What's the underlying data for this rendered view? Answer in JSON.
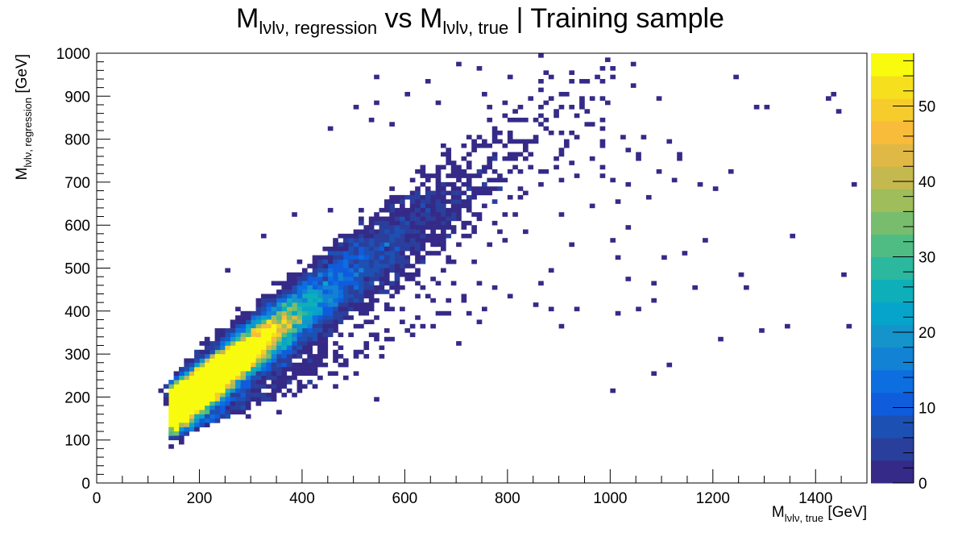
{
  "chart_data": {
    "type": "heatmap",
    "title": {
      "m1": "M",
      "sub1": "lνlν, regression",
      "vs": " vs ",
      "m2": "M",
      "sub2": "lνlν, true",
      "rest": " | Training sample"
    },
    "xlabel": {
      "main": "M",
      "sub": "lνlν, true",
      "unit": " [GeV]"
    },
    "ylabel": {
      "main": "M",
      "sub": "lνlν, regression",
      "unit": " [GeV]"
    },
    "xlim": [
      0,
      1500
    ],
    "ylim": [
      0,
      1000
    ],
    "x_ticks": [
      "0",
      "200",
      "400",
      "600",
      "800",
      "1000",
      "1200",
      "1400"
    ],
    "y_ticks": [
      "0",
      "100",
      "200",
      "300",
      "400",
      "500",
      "600",
      "700",
      "800",
      "900",
      "1000"
    ],
    "z_range": [
      0,
      57
    ],
    "z_ticks": [
      "0",
      "10",
      "20",
      "30",
      "40",
      "50"
    ],
    "bin_size": [
      10,
      10
    ],
    "grid": false,
    "palette": [
      "#352a87",
      "#2a3f9c",
      "#1d50b3",
      "#0f5cdd",
      "#0d6ee0",
      "#1282d4",
      "#1494ca",
      "#06a4ca",
      "#0eafb8",
      "#2bb89f",
      "#4fbc84",
      "#78bd6d",
      "#9fbd5a",
      "#c4b94e",
      "#e0b845",
      "#f8bb3a",
      "#f5cc2c",
      "#f6e01e",
      "#f9fb0e"
    ],
    "density_description": "Dense band along y ≈ 0.9·x + 40 from (150,150) to (1000,1000); peak ≈ 57 counts near x=190, y=210; sparse scatter below the band out to x≈1480",
    "peak": {
      "x": 190,
      "y": 210,
      "count": 57
    },
    "outliers": [
      [
        1430,
        905
      ],
      [
        1425,
        895
      ],
      [
        1440,
        860
      ],
      [
        1305,
        870
      ],
      [
        1240,
        940
      ],
      [
        1280,
        870
      ],
      [
        1470,
        690
      ],
      [
        1455,
        480
      ],
      [
        1460,
        365
      ],
      [
        1350,
        575
      ],
      [
        1340,
        365
      ],
      [
        1295,
        355
      ],
      [
        1210,
        335
      ],
      [
        1250,
        485
      ],
      [
        1265,
        455
      ],
      [
        1160,
        455
      ],
      [
        1100,
        525
      ],
      [
        1080,
        465
      ],
      [
        1145,
        530
      ],
      [
        1185,
        560
      ],
      [
        1205,
        680
      ],
      [
        1230,
        720
      ],
      [
        1175,
        690
      ],
      [
        1120,
        700
      ],
      [
        1090,
        725
      ],
      [
        1055,
        755
      ],
      [
        1035,
        775
      ],
      [
        1020,
        800
      ],
      [
        1130,
        755
      ],
      [
        1060,
        800
      ],
      [
        1075,
        665
      ],
      [
        1015,
        655
      ],
      [
        1030,
        590
      ],
      [
        1005,
        565
      ],
      [
        1015,
        525
      ],
      [
        1035,
        470
      ],
      [
        1055,
        405
      ],
      [
        1010,
        395
      ],
      [
        1080,
        425
      ],
      [
        1110,
        270
      ],
      [
        1080,
        255
      ],
      [
        1005,
        215
      ],
      [
        960,
        640
      ],
      [
        905,
        625
      ],
      [
        920,
        555
      ],
      [
        865,
        465
      ],
      [
        885,
        405
      ],
      [
        935,
        405
      ],
      [
        900,
        360
      ],
      [
        855,
        415
      ],
      [
        760,
        555
      ],
      [
        735,
        515
      ],
      [
        690,
        515
      ],
      [
        745,
        465
      ],
      [
        800,
        430
      ],
      [
        720,
        395
      ],
      [
        700,
        320
      ],
      [
        610,
        365
      ],
      [
        640,
        435
      ],
      [
        660,
        465
      ],
      [
        560,
        400
      ],
      [
        500,
        360
      ],
      [
        540,
        330
      ],
      [
        520,
        290
      ],
      [
        505,
        250
      ],
      [
        545,
        195
      ],
      [
        480,
        245
      ],
      [
        465,
        220
      ],
      [
        430,
        310
      ],
      [
        400,
        325
      ],
      [
        420,
        220
      ],
      [
        385,
        200
      ],
      [
        355,
        165
      ],
      [
        225,
        175
      ],
      [
        200,
        160
      ],
      [
        255,
        495
      ],
      [
        325,
        570
      ],
      [
        380,
        620
      ],
      [
        455,
        630
      ],
      [
        405,
        485
      ],
      [
        360,
        460
      ],
      [
        815,
        620
      ],
      [
        830,
        580
      ],
      [
        790,
        565
      ],
      [
        870,
        725
      ],
      [
        905,
        770
      ],
      [
        925,
        810
      ],
      [
        960,
        830
      ],
      [
        980,
        790
      ],
      [
        995,
        880
      ],
      [
        1090,
        895
      ],
      [
        1045,
        970
      ],
      [
        995,
        985
      ],
      [
        985,
        965
      ],
      [
        1040,
        925
      ],
      [
        980,
        930
      ],
      [
        450,
        825
      ],
      [
        500,
        870
      ],
      [
        530,
        840
      ],
      [
        570,
        830
      ],
      [
        540,
        880
      ],
      [
        600,
        905
      ],
      [
        645,
        935
      ],
      [
        660,
        885
      ],
      [
        545,
        945
      ],
      [
        700,
        970
      ],
      [
        740,
        960
      ],
      [
        800,
        940
      ],
      [
        885,
        940
      ],
      [
        755,
        905
      ],
      [
        950,
        930
      ],
      [
        920,
        950
      ],
      [
        1000,
        940
      ],
      [
        1000,
        960
      ],
      [
        1055,
        765
      ],
      [
        1130,
        760
      ],
      [
        1110,
        790
      ],
      [
        960,
        755
      ],
      [
        980,
        735
      ],
      [
        1000,
        700
      ],
      [
        935,
        710
      ],
      [
        980,
        715
      ],
      [
        1030,
        690
      ],
      [
        905,
        700
      ],
      [
        860,
        690
      ],
      [
        825,
        665
      ]
    ]
  }
}
